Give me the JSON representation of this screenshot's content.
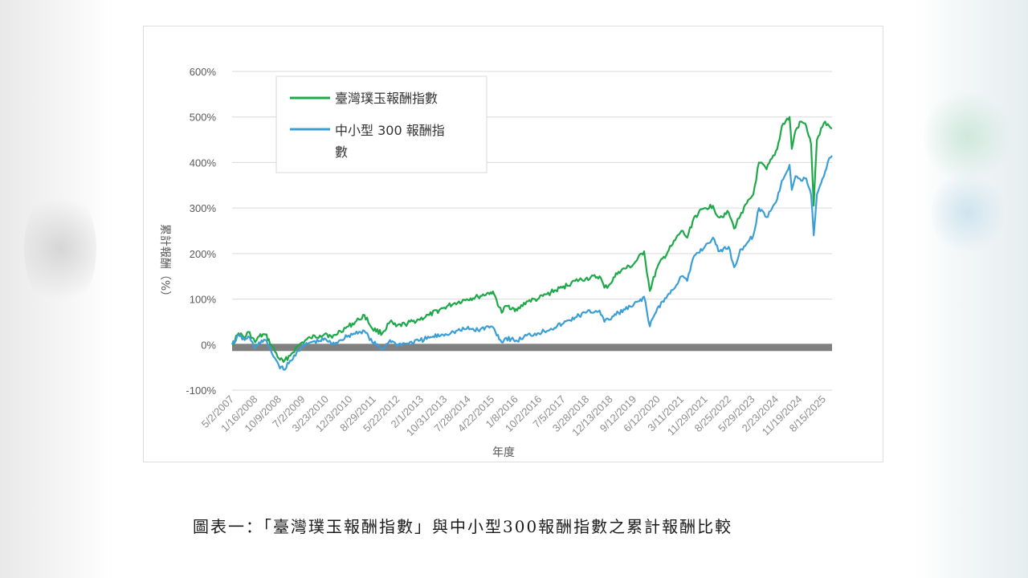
{
  "caption": "圖表一：「臺灣璞玉報酬指數」與中小型300報酬指數之累計報酬比較",
  "chart_data": {
    "type": "line",
    "xlabel": "年度",
    "ylabel": "累計報酬（%）",
    "ylim": [
      -100,
      600
    ],
    "yticks": [
      "-100%",
      "0%",
      "100%",
      "200%",
      "300%",
      "400%",
      "500%",
      "600%"
    ],
    "yvalues": [
      -100,
      0,
      100,
      200,
      300,
      400,
      500,
      600
    ],
    "xlim": [
      "2007-05-02",
      "2025-11-01"
    ],
    "xticks": [
      "5/2/2007",
      "1/16/2008",
      "10/9/2008",
      "7/2/2009",
      "3/23/2010",
      "12/3/2010",
      "8/29/2011",
      "5/22/2012",
      "2/1/2013",
      "10/31/2013",
      "7/28/2014",
      "4/22/2015",
      "1/8/2016",
      "10/2/2016",
      "7/5/2017",
      "3/28/2018",
      "12/13/2018",
      "9/12/2019",
      "6/12/2020",
      "3/11/2021",
      "11/29/2021",
      "8/25/2022",
      "5/29/2023",
      "2/23/2024",
      "11/19/2024",
      "8/15/2025"
    ],
    "grid": true,
    "legend_position": "top-left",
    "colors": {
      "green": "#1fa84a",
      "blue": "#3b9fd6",
      "grid": "#d9d9d9",
      "zero": "#808080"
    },
    "series": [
      {
        "name": "臺灣璞玉報酬指數",
        "color": "#1fa84a",
        "points": [
          [
            "2007-05-02",
            0
          ],
          [
            "2007-07-15",
            25
          ],
          [
            "2007-09-20",
            15
          ],
          [
            "2007-11-01",
            28
          ],
          [
            "2008-01-16",
            5
          ],
          [
            "2008-03-01",
            18
          ],
          [
            "2008-05-10",
            22
          ],
          [
            "2008-07-15",
            0
          ],
          [
            "2008-10-09",
            -30
          ],
          [
            "2008-12-01",
            -38
          ],
          [
            "2009-03-01",
            -20
          ],
          [
            "2009-05-01",
            -5
          ],
          [
            "2009-07-02",
            5
          ],
          [
            "2009-10-01",
            15
          ],
          [
            "2010-01-15",
            20
          ],
          [
            "2010-03-23",
            25
          ],
          [
            "2010-06-01",
            15
          ],
          [
            "2010-09-01",
            30
          ],
          [
            "2010-12-03",
            40
          ],
          [
            "2011-04-01",
            55
          ],
          [
            "2011-06-01",
            65
          ],
          [
            "2011-08-29",
            35
          ],
          [
            "2011-12-20",
            25
          ],
          [
            "2012-03-15",
            50
          ],
          [
            "2012-05-22",
            40
          ],
          [
            "2012-09-01",
            45
          ],
          [
            "2013-02-01",
            55
          ],
          [
            "2013-06-01",
            65
          ],
          [
            "2013-10-31",
            80
          ],
          [
            "2014-03-01",
            90
          ],
          [
            "2014-07-28",
            100
          ],
          [
            "2014-12-01",
            105
          ],
          [
            "2015-04-22",
            115
          ],
          [
            "2015-06-01",
            110
          ],
          [
            "2015-08-25",
            70
          ],
          [
            "2015-10-15",
            85
          ],
          [
            "2016-01-08",
            80
          ],
          [
            "2016-02-15",
            75
          ],
          [
            "2016-06-01",
            95
          ],
          [
            "2016-10-02",
            100
          ],
          [
            "2017-03-01",
            115
          ],
          [
            "2017-07-05",
            125
          ],
          [
            "2017-12-01",
            140
          ],
          [
            "2018-03-28",
            145
          ],
          [
            "2018-09-01",
            150
          ],
          [
            "2018-10-25",
            125
          ],
          [
            "2018-12-13",
            130
          ],
          [
            "2019-04-01",
            160
          ],
          [
            "2019-09-12",
            175
          ],
          [
            "2020-01-15",
            205
          ],
          [
            "2020-03-19",
            118
          ],
          [
            "2020-06-12",
            170
          ],
          [
            "2020-12-01",
            220
          ],
          [
            "2021-03-11",
            250
          ],
          [
            "2021-05-15",
            235
          ],
          [
            "2021-08-01",
            280
          ],
          [
            "2021-11-29",
            300
          ],
          [
            "2022-03-01",
            305
          ],
          [
            "2022-05-01",
            280
          ],
          [
            "2022-08-25",
            290
          ],
          [
            "2022-10-25",
            255
          ],
          [
            "2023-01-15",
            290
          ],
          [
            "2023-05-29",
            330
          ],
          [
            "2023-08-01",
            400
          ],
          [
            "2023-10-25",
            385
          ],
          [
            "2024-02-23",
            430
          ],
          [
            "2024-04-15",
            480
          ],
          [
            "2024-07-10",
            500
          ],
          [
            "2024-08-05",
            430
          ],
          [
            "2024-09-15",
            470
          ],
          [
            "2024-11-19",
            490
          ],
          [
            "2025-01-15",
            480
          ],
          [
            "2025-03-10",
            440
          ],
          [
            "2025-04-09",
            305
          ],
          [
            "2025-05-15",
            450
          ],
          [
            "2025-08-15",
            490
          ],
          [
            "2025-10-01",
            480
          ],
          [
            "2025-11-01",
            475
          ]
        ]
      },
      {
        "name": "中小型 300 報酬指數",
        "color": "#3b9fd6",
        "points": [
          [
            "2007-05-02",
            0
          ],
          [
            "2007-07-15",
            20
          ],
          [
            "2007-09-20",
            10
          ],
          [
            "2007-11-01",
            18
          ],
          [
            "2008-01-16",
            -8
          ],
          [
            "2008-03-01",
            5
          ],
          [
            "2008-05-10",
            10
          ],
          [
            "2008-07-15",
            -15
          ],
          [
            "2008-10-09",
            -45
          ],
          [
            "2008-12-01",
            -55
          ],
          [
            "2009-03-01",
            -35
          ],
          [
            "2009-05-01",
            -15
          ],
          [
            "2009-07-02",
            -5
          ],
          [
            "2009-10-01",
            5
          ],
          [
            "2010-01-15",
            8
          ],
          [
            "2010-03-23",
            12
          ],
          [
            "2010-06-01",
            0
          ],
          [
            "2010-09-01",
            10
          ],
          [
            "2010-12-03",
            20
          ],
          [
            "2011-04-01",
            28
          ],
          [
            "2011-06-01",
            30
          ],
          [
            "2011-08-29",
            5
          ],
          [
            "2011-12-20",
            -10
          ],
          [
            "2012-03-15",
            10
          ],
          [
            "2012-05-22",
            0
          ],
          [
            "2012-09-01",
            2
          ],
          [
            "2013-02-01",
            8
          ],
          [
            "2013-06-01",
            15
          ],
          [
            "2013-10-31",
            22
          ],
          [
            "2014-03-01",
            28
          ],
          [
            "2014-07-28",
            35
          ],
          [
            "2014-12-01",
            32
          ],
          [
            "2015-04-22",
            40
          ],
          [
            "2015-06-01",
            35
          ],
          [
            "2015-08-25",
            5
          ],
          [
            "2015-10-15",
            15
          ],
          [
            "2016-01-08",
            10
          ],
          [
            "2016-02-15",
            8
          ],
          [
            "2016-06-01",
            20
          ],
          [
            "2016-10-02",
            25
          ],
          [
            "2017-03-01",
            35
          ],
          [
            "2017-07-05",
            45
          ],
          [
            "2017-12-01",
            60
          ],
          [
            "2018-03-28",
            70
          ],
          [
            "2018-09-01",
            75
          ],
          [
            "2018-10-25",
            50
          ],
          [
            "2018-12-13",
            55
          ],
          [
            "2019-04-01",
            70
          ],
          [
            "2019-09-12",
            85
          ],
          [
            "2020-01-15",
            105
          ],
          [
            "2020-03-19",
            40
          ],
          [
            "2020-06-12",
            80
          ],
          [
            "2020-12-01",
            120
          ],
          [
            "2021-03-11",
            150
          ],
          [
            "2021-05-15",
            140
          ],
          [
            "2021-08-01",
            195
          ],
          [
            "2021-11-29",
            215
          ],
          [
            "2022-03-01",
            235
          ],
          [
            "2022-05-01",
            205
          ],
          [
            "2022-08-25",
            215
          ],
          [
            "2022-10-25",
            170
          ],
          [
            "2023-01-15",
            210
          ],
          [
            "2023-05-29",
            240
          ],
          [
            "2023-08-01",
            300
          ],
          [
            "2023-10-25",
            280
          ],
          [
            "2024-02-23",
            320
          ],
          [
            "2024-04-15",
            360
          ],
          [
            "2024-07-10",
            395
          ],
          [
            "2024-08-05",
            340
          ],
          [
            "2024-09-15",
            370
          ],
          [
            "2024-11-19",
            360
          ],
          [
            "2025-01-15",
            365
          ],
          [
            "2025-03-10",
            330
          ],
          [
            "2025-04-09",
            240
          ],
          [
            "2025-05-15",
            330
          ],
          [
            "2025-08-15",
            380
          ],
          [
            "2025-10-01",
            410
          ],
          [
            "2025-11-01",
            415
          ]
        ]
      }
    ],
    "legend": {
      "entries": [
        {
          "label": "臺灣璞玉報酬指數",
          "color": "#1fa84a"
        },
        {
          "label_line1": "中小型 300 報酬指",
          "label_line2": "數",
          "color": "#3b9fd6"
        }
      ]
    }
  }
}
